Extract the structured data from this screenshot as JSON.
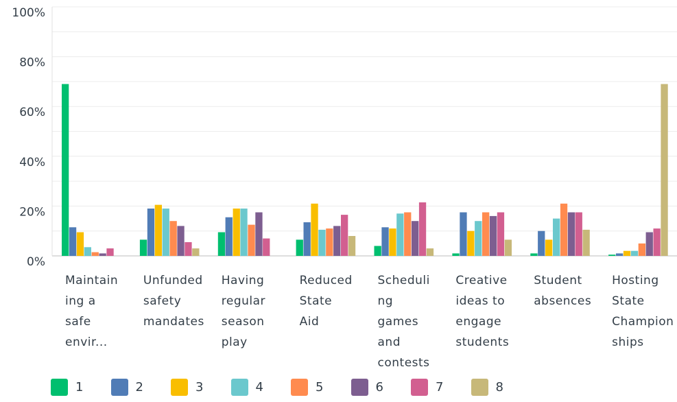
{
  "chart_data": {
    "type": "bar",
    "categories": [
      "Maintain\ning a\nsafe\nenvir...",
      "Unfunded\nsafety\nmandates",
      "Having\nregular\nseason\nplay",
      "Reduced\nState\nAid",
      "Scheduli\nng\ngames\nand\ncontests",
      "Creative\nideas to\nengage\nstudents",
      "Student\nabsences",
      "Hosting\nState\nChampion\nships"
    ],
    "series": [
      {
        "name": "1",
        "color": "#00bf6f",
        "values": [
          69.0,
          6.5,
          9.5,
          6.5,
          4.0,
          1.0,
          1.0,
          0.5
        ]
      },
      {
        "name": "2",
        "color": "#507cb6",
        "values": [
          11.5,
          19.0,
          15.5,
          13.5,
          11.5,
          17.5,
          10.0,
          1.0
        ]
      },
      {
        "name": "3",
        "color": "#f9be00",
        "values": [
          9.5,
          20.5,
          19.0,
          21.0,
          11.0,
          10.0,
          6.5,
          2.0
        ]
      },
      {
        "name": "4",
        "color": "#6bc8cd",
        "values": [
          3.5,
          19.0,
          19.0,
          10.5,
          17.0,
          14.0,
          15.0,
          2.0
        ]
      },
      {
        "name": "5",
        "color": "#ff8b4f",
        "values": [
          1.5,
          14.0,
          12.5,
          11.0,
          17.5,
          17.5,
          21.0,
          5.0
        ]
      },
      {
        "name": "6",
        "color": "#7d5e90",
        "values": [
          1.0,
          12.0,
          17.5,
          12.0,
          14.0,
          16.0,
          17.5,
          9.5
        ]
      },
      {
        "name": "7",
        "color": "#d25f90",
        "values": [
          3.0,
          5.5,
          7.0,
          16.5,
          21.5,
          17.5,
          17.5,
          11.0
        ]
      },
      {
        "name": "8",
        "color": "#c7b879",
        "values": [
          0,
          3.0,
          0,
          8.0,
          3.0,
          6.5,
          10.5,
          69.0
        ]
      }
    ],
    "yticks": [
      "0%",
      "20%",
      "40%",
      "60%",
      "80%",
      "100%"
    ],
    "ylim": [
      0,
      100
    ],
    "grid": true,
    "legend_position": "bottom-left"
  }
}
